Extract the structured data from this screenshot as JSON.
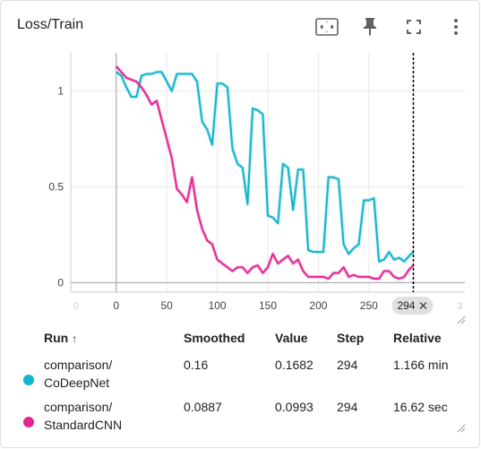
{
  "card": {
    "title": "Loss/Train",
    "tools": [
      "fit-domain-icon",
      "pin-icon",
      "fullscreen-icon",
      "more-vert-icon"
    ]
  },
  "chart_data": {
    "type": "line",
    "title": "Loss/Train",
    "xlabel": "",
    "ylabel": "",
    "xlim": [
      -45,
      345
    ],
    "ylim": [
      -0.05,
      1.2
    ],
    "x_ticks": [
      0,
      50,
      100,
      150,
      200,
      250
    ],
    "x_ticks_faded": [
      {
        "value": -45,
        "label": "0"
      },
      {
        "value": 345,
        "label": "3"
      }
    ],
    "y_ticks": [
      0,
      0.5,
      1
    ],
    "y_tick_labels": [
      "0",
      "0.5",
      "1"
    ],
    "hover_step": 294,
    "hover_label": "294",
    "series": [
      {
        "name": "comparison/CoDeepNet",
        "color": "#12b5cb",
        "x": [
          0,
          5,
          10,
          15,
          20,
          25,
          30,
          35,
          40,
          45,
          50,
          55,
          60,
          65,
          70,
          75,
          80,
          85,
          90,
          95,
          100,
          105,
          110,
          115,
          120,
          125,
          130,
          135,
          140,
          145,
          150,
          155,
          160,
          165,
          170,
          175,
          180,
          185,
          190,
          195,
          200,
          205,
          210,
          215,
          220,
          225,
          230,
          235,
          240,
          245,
          250,
          255,
          260,
          265,
          270,
          275,
          280,
          285,
          290,
          294
        ],
        "values": [
          1.1,
          1.08,
          1.02,
          0.97,
          0.97,
          1.08,
          1.09,
          1.09,
          1.1,
          1.1,
          1.05,
          1.0,
          1.09,
          1.09,
          1.09,
          1.09,
          1.05,
          0.84,
          0.8,
          0.72,
          1.04,
          1.04,
          1.02,
          0.7,
          0.62,
          0.6,
          0.41,
          0.91,
          0.9,
          0.88,
          0.35,
          0.34,
          0.31,
          0.62,
          0.6,
          0.38,
          0.59,
          0.59,
          0.17,
          0.16,
          0.16,
          0.16,
          0.55,
          0.55,
          0.54,
          0.2,
          0.15,
          0.18,
          0.2,
          0.43,
          0.43,
          0.44,
          0.11,
          0.12,
          0.16,
          0.12,
          0.13,
          0.11,
          0.14,
          0.16
        ]
      },
      {
        "name": "comparison/StandardCNN",
        "color": "#e52592",
        "x": [
          0,
          5,
          10,
          15,
          20,
          25,
          30,
          35,
          40,
          45,
          50,
          55,
          60,
          65,
          70,
          75,
          80,
          85,
          90,
          95,
          100,
          105,
          110,
          115,
          120,
          125,
          130,
          135,
          140,
          145,
          150,
          155,
          160,
          165,
          170,
          175,
          180,
          185,
          190,
          195,
          200,
          205,
          210,
          215,
          220,
          225,
          230,
          235,
          240,
          245,
          250,
          255,
          260,
          265,
          270,
          275,
          280,
          285,
          290,
          294
        ],
        "values": [
          1.13,
          1.1,
          1.07,
          1.06,
          1.05,
          1.02,
          0.98,
          0.93,
          0.95,
          0.85,
          0.75,
          0.65,
          0.49,
          0.46,
          0.42,
          0.55,
          0.38,
          0.28,
          0.22,
          0.2,
          0.12,
          0.1,
          0.08,
          0.06,
          0.08,
          0.08,
          0.05,
          0.08,
          0.09,
          0.05,
          0.08,
          0.15,
          0.1,
          0.12,
          0.14,
          0.1,
          0.12,
          0.06,
          0.03,
          0.03,
          0.03,
          0.03,
          0.02,
          0.05,
          0.05,
          0.08,
          0.03,
          0.04,
          0.03,
          0.03,
          0.03,
          0.02,
          0.02,
          0.06,
          0.06,
          0.03,
          0.02,
          0.03,
          0.07,
          0.09
        ]
      }
    ]
  },
  "table": {
    "headers": {
      "run": "Run",
      "sort_arrow": "↑",
      "smoothed": "Smoothed",
      "value": "Value",
      "step": "Step",
      "relative": "Relative"
    },
    "rows": [
      {
        "color": "#12b5cb",
        "run_line1": "comparison/",
        "run_line2": "CoDeepNet",
        "smoothed": "0.16",
        "value": "0.1682",
        "step": "294",
        "relative": "1.166 min"
      },
      {
        "color": "#e52592",
        "run_line1": "comparison/",
        "run_line2": "StandardCNN",
        "smoothed": "0.0887",
        "value": "0.0993",
        "step": "294",
        "relative": "16.62 sec"
      }
    ]
  }
}
